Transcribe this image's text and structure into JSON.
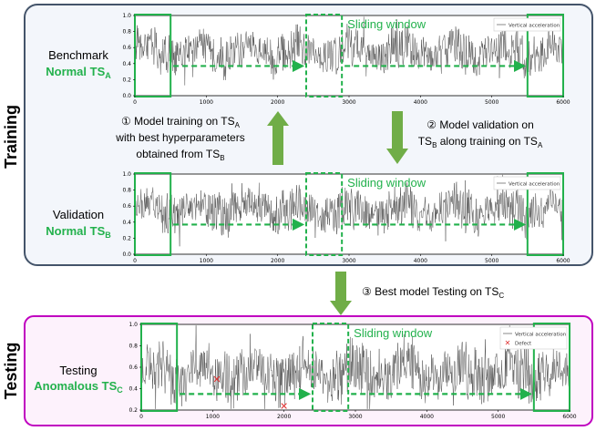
{
  "training": {
    "section_label": "Training",
    "benchmark": {
      "line1": "Benchmark",
      "line2": "Normal TS",
      "subscript": "A"
    },
    "validation": {
      "line1": "Validation",
      "line2": "Normal TS",
      "subscript": "B"
    },
    "step1": {
      "line1_prefix": "① Model training on TS",
      "line1_sub": "A",
      "line2": "with best hyperparameters",
      "line3_prefix": "obtained from TS",
      "line3_sub": "B"
    },
    "step2": {
      "line1": "② Model validation on",
      "line2_prefix": "TS",
      "line2_sub": "B",
      "line2_suffix": " along training on TS",
      "line2_sub2": "A"
    }
  },
  "step3": {
    "text_prefix": "③ Best model Testing on TS",
    "text_sub": "C"
  },
  "testing": {
    "section_label": "Testing",
    "title": {
      "line1": "Testing",
      "line2": "Anomalous TS",
      "subscript": "C"
    }
  },
  "charts": [
    {
      "id": "benchmark",
      "sliding_label": "Sliding window",
      "legend": [
        "Vertical acceleration"
      ]
    },
    {
      "id": "validation",
      "sliding_label": "Sliding window",
      "legend": [
        "Vertical acceleration"
      ]
    },
    {
      "id": "testing",
      "sliding_label": "Sliding window",
      "legend": [
        "Vertical acceleration",
        "Defect"
      ]
    }
  ],
  "chart_data": [
    {
      "type": "line",
      "title": "Benchmark",
      "series": [
        {
          "name": "Vertical acceleration"
        }
      ],
      "xlim": [
        0,
        6000
      ],
      "ylim": [
        0.0,
        1.0
      ],
      "x_ticks": [
        "0",
        "1000",
        "2000",
        "3000",
        "4000",
        "5000",
        "6000"
      ],
      "y_ticks": [
        "0.0",
        "0.2",
        "0.4",
        "0.6",
        "0.8",
        "1.0"
      ],
      "windows": [
        {
          "x_start": 0,
          "x_end": 500,
          "style": "solid"
        },
        {
          "x_start": 2400,
          "x_end": 2900,
          "style": "dashed"
        },
        {
          "x_start": 5500,
          "x_end": 6000,
          "style": "solid"
        }
      ],
      "arrows": [
        {
          "from": 500,
          "to": 2400,
          "y": 0.37
        },
        {
          "from": 2900,
          "to": 5500,
          "y": 0.37
        }
      ]
    },
    {
      "type": "line",
      "title": "Validation",
      "series": [
        {
          "name": "Vertical acceleration"
        }
      ],
      "xlim": [
        0,
        6000
      ],
      "ylim": [
        0.0,
        1.0
      ],
      "x_ticks": [
        "0",
        "1000",
        "2000",
        "3000",
        "4000",
        "5000",
        "6000"
      ],
      "y_ticks": [
        "0.0",
        "0.2",
        "0.4",
        "0.6",
        "0.8",
        "1.0"
      ],
      "windows": [
        {
          "x_start": 0,
          "x_end": 500,
          "style": "solid"
        },
        {
          "x_start": 2400,
          "x_end": 2900,
          "style": "dashed"
        },
        {
          "x_start": 5500,
          "x_end": 6000,
          "style": "solid"
        }
      ],
      "arrows": [
        {
          "from": 500,
          "to": 2400,
          "y": 0.37
        },
        {
          "from": 2900,
          "to": 5500,
          "y": 0.37
        }
      ]
    },
    {
      "type": "line",
      "title": "Testing",
      "series": [
        {
          "name": "Vertical acceleration"
        },
        {
          "name": "Defect"
        }
      ],
      "xlim": [
        0,
        6000
      ],
      "ylim": [
        0.2,
        1.0
      ],
      "x_ticks": [
        "0",
        "1000",
        "2000",
        "3000",
        "4000",
        "5000",
        "6000"
      ],
      "y_ticks": [
        "0.2",
        "0.4",
        "0.6",
        "0.8",
        "1.0"
      ],
      "defects": [
        {
          "x": 1060,
          "y": 0.49
        },
        {
          "x": 2000,
          "y": 0.24
        }
      ],
      "windows": [
        {
          "x_start": 0,
          "x_end": 500,
          "style": "solid"
        },
        {
          "x_start": 2400,
          "x_end": 2900,
          "style": "dashed"
        },
        {
          "x_start": 5500,
          "x_end": 6000,
          "style": "solid"
        }
      ],
      "arrows": [
        {
          "from": 500,
          "to": 2400,
          "y": 0.35
        },
        {
          "from": 2900,
          "to": 5500,
          "y": 0.35
        }
      ]
    }
  ],
  "colors": {
    "green": "#22b14c",
    "arrow_green": "#70ad47",
    "training_bg": "#f3f6fb",
    "training_border": "#44546a",
    "testing_bg": "#fdf2fc",
    "testing_border": "#c000c0",
    "signal": "#555555",
    "defect": "#e03030"
  }
}
